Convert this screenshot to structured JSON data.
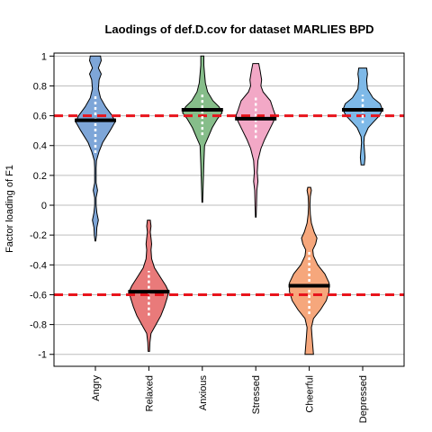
{
  "chart_data": {
    "type": "violin",
    "title": "Laodings of def.D.cov for dataset MARLIES BPD",
    "xlabel": "",
    "ylabel": "Factor loading of F1",
    "ylim": [
      -1.08,
      1.02
    ],
    "yticks": [
      -1,
      -0.8,
      -0.6,
      -0.4,
      -0.2,
      0,
      0.2,
      0.4,
      0.6,
      0.8,
      1
    ],
    "categories": [
      "Angry",
      "Relaxed",
      "Anxious",
      "Stressed",
      "Cheerful",
      "Depressed"
    ],
    "grid": true,
    "reference_lines": [
      0.6,
      -0.6
    ],
    "colors": {
      "Angry": "#7ea6d8",
      "Relaxed": "#e97a7a",
      "Anxious": "#86bd8a",
      "Stressed": "#f2a8c6",
      "Cheerful": "#f6a77c",
      "Depressed": "#7eb9e8",
      "reference": "#e8141c",
      "grid": "#bdbdbd"
    },
    "series": [
      {
        "category": "Angry",
        "mean": 0.57,
        "ci": [
          0.35,
          0.73
        ],
        "profile": [
          [
            -0.24,
            0.5
          ],
          [
            -0.2,
            1.5
          ],
          [
            -0.15,
            2
          ],
          [
            -0.1,
            4
          ],
          [
            -0.05,
            2
          ],
          [
            0,
            1
          ],
          [
            0.05,
            1
          ],
          [
            0.1,
            3
          ],
          [
            0.15,
            1
          ],
          [
            0.2,
            1
          ],
          [
            0.25,
            1
          ],
          [
            0.3,
            1.5
          ],
          [
            0.36,
            5
          ],
          [
            0.42,
            10
          ],
          [
            0.5,
            20
          ],
          [
            0.56,
            27
          ],
          [
            0.6,
            23
          ],
          [
            0.66,
            14
          ],
          [
            0.72,
            7
          ],
          [
            0.78,
            4
          ],
          [
            0.84,
            5
          ],
          [
            0.88,
            8
          ],
          [
            0.92,
            4
          ],
          [
            0.97,
            8
          ],
          [
            1.0,
            7
          ]
        ]
      },
      {
        "category": "Relaxed",
        "mean": -0.58,
        "ci": [
          -0.74,
          -0.44
        ],
        "profile": [
          [
            -0.98,
            1
          ],
          [
            -0.92,
            1.5
          ],
          [
            -0.86,
            3
          ],
          [
            -0.8,
            10
          ],
          [
            -0.74,
            17
          ],
          [
            -0.68,
            22
          ],
          [
            -0.62,
            26
          ],
          [
            -0.58,
            28
          ],
          [
            -0.54,
            24
          ],
          [
            -0.48,
            16
          ],
          [
            -0.42,
            8
          ],
          [
            -0.36,
            4
          ],
          [
            -0.3,
            3
          ],
          [
            -0.26,
            4
          ],
          [
            -0.22,
            3
          ],
          [
            -0.18,
            2
          ],
          [
            -0.14,
            3
          ],
          [
            -0.1,
            2
          ]
        ]
      },
      {
        "category": "Anxious",
        "mean": 0.64,
        "ci": [
          0.47,
          0.75
        ],
        "profile": [
          [
            0.02,
            0.5
          ],
          [
            0.1,
            1
          ],
          [
            0.2,
            1.5
          ],
          [
            0.28,
            2
          ],
          [
            0.34,
            2.5
          ],
          [
            0.4,
            3
          ],
          [
            0.46,
            8
          ],
          [
            0.52,
            13
          ],
          [
            0.58,
            20
          ],
          [
            0.62,
            26
          ],
          [
            0.66,
            22
          ],
          [
            0.7,
            14
          ],
          [
            0.76,
            7
          ],
          [
            0.82,
            4
          ],
          [
            0.88,
            3
          ],
          [
            0.94,
            2
          ],
          [
            1.0,
            2
          ]
        ]
      },
      {
        "category": "Stressed",
        "mean": 0.58,
        "ci": [
          0.45,
          0.73
        ],
        "profile": [
          [
            -0.08,
            0.5
          ],
          [
            0.0,
            1
          ],
          [
            0.1,
            1.5
          ],
          [
            0.16,
            3
          ],
          [
            0.22,
            2
          ],
          [
            0.3,
            3
          ],
          [
            0.38,
            7
          ],
          [
            0.44,
            12
          ],
          [
            0.5,
            18
          ],
          [
            0.56,
            24
          ],
          [
            0.6,
            27
          ],
          [
            0.64,
            24
          ],
          [
            0.7,
            20
          ],
          [
            0.76,
            10
          ],
          [
            0.8,
            7
          ],
          [
            0.84,
            8
          ],
          [
            0.9,
            6
          ],
          [
            0.95,
            4
          ]
        ]
      },
      {
        "category": "Cheerful",
        "mean": -0.54,
        "ci": [
          -0.73,
          -0.3
        ],
        "profile": [
          [
            -1.0,
            6
          ],
          [
            -0.94,
            5
          ],
          [
            -0.88,
            4
          ],
          [
            -0.82,
            3
          ],
          [
            -0.76,
            6
          ],
          [
            -0.7,
            16
          ],
          [
            -0.64,
            24
          ],
          [
            -0.58,
            28
          ],
          [
            -0.52,
            28
          ],
          [
            -0.46,
            22
          ],
          [
            -0.4,
            12
          ],
          [
            -0.34,
            6
          ],
          [
            -0.3,
            5
          ],
          [
            -0.26,
            9
          ],
          [
            -0.22,
            11
          ],
          [
            -0.18,
            7
          ],
          [
            -0.12,
            3
          ],
          [
            -0.06,
            1.5
          ],
          [
            0.0,
            1
          ],
          [
            0.06,
            1.5
          ],
          [
            0.1,
            3
          ],
          [
            0.12,
            2
          ]
        ]
      },
      {
        "category": "Depressed",
        "mean": 0.64,
        "ci": [
          0.55,
          0.74
        ],
        "profile": [
          [
            0.27,
            2
          ],
          [
            0.32,
            3
          ],
          [
            0.38,
            2
          ],
          [
            0.42,
            1.5
          ],
          [
            0.46,
            2
          ],
          [
            0.52,
            7
          ],
          [
            0.56,
            14
          ],
          [
            0.6,
            21
          ],
          [
            0.64,
            25
          ],
          [
            0.68,
            22
          ],
          [
            0.72,
            13
          ],
          [
            0.78,
            6
          ],
          [
            0.84,
            5
          ],
          [
            0.88,
            6
          ],
          [
            0.92,
            5
          ]
        ]
      }
    ]
  }
}
